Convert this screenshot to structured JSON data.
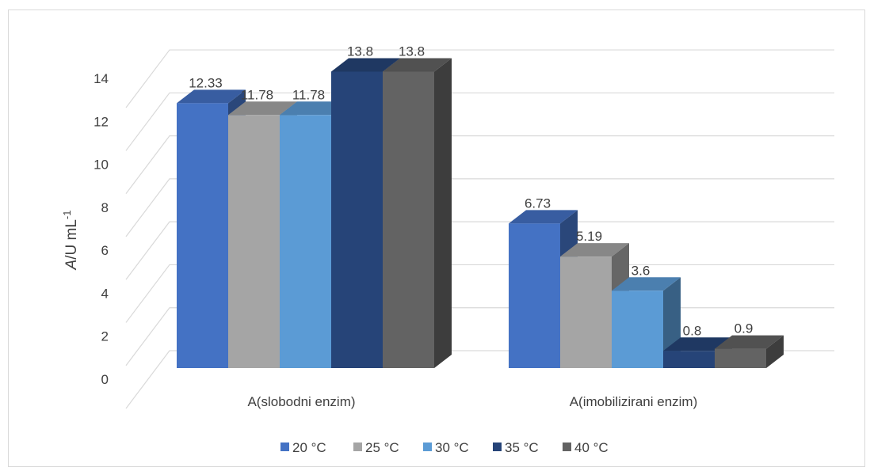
{
  "chart_data": {
    "type": "bar",
    "style": "3d-clustered-column",
    "categories": [
      "A(slobodni enzim)",
      "A(imobilizirani enzim)"
    ],
    "series": [
      {
        "name": "20 °C",
        "values": [
          12.33,
          6.73
        ],
        "labels": [
          "12.33",
          "6.73"
        ],
        "color": "#4472c4"
      },
      {
        "name": "25 °C",
        "values": [
          11.78,
          5.19
        ],
        "labels": [
          "11.78",
          "5.19"
        ],
        "color": "#a5a5a5"
      },
      {
        "name": "30 °C",
        "values": [
          11.78,
          3.6
        ],
        "labels": [
          "11.78",
          "3.6"
        ],
        "color": "#5b9bd5"
      },
      {
        "name": "35 °C",
        "values": [
          13.8,
          0.8
        ],
        "labels": [
          "13.8",
          "0.8"
        ],
        "color": "#264478"
      },
      {
        "name": "40 °C",
        "values": [
          13.8,
          0.9
        ],
        "labels": [
          "13.8",
          "0.9"
        ],
        "color": "#636363"
      }
    ],
    "ylabel_main": "A",
    "ylabel_rest": "/U mL",
    "ylabel_sup": "-1",
    "ylim": [
      0,
      14
    ],
    "yticks": [
      "0",
      "2",
      "4",
      "6",
      "8",
      "10",
      "12",
      "14"
    ],
    "grid": true,
    "legend": "bottom"
  }
}
